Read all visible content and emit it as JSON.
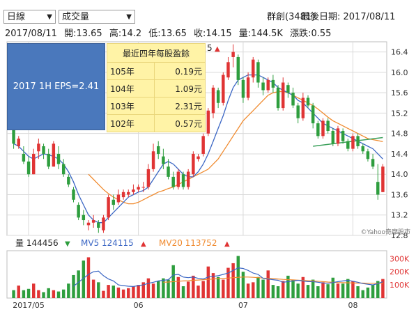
{
  "controls": {
    "period": "日線",
    "indicator": "成交量"
  },
  "header": {
    "stock_name": "群創(3481)",
    "last_date": "最後日期: 2017/08/11",
    "date": "2017/08/11",
    "open": "開:13.65",
    "high": "高:14.2",
    "low": "低:13.65",
    "close": "收:14.15",
    "volume": "量:144.5K",
    "change": "漲跌:0.55",
    "ma_hint": "5",
    "ma_arrow": "▲"
  },
  "overlay": {
    "eps_box": "2017 1H EPS=2.41",
    "eps_title": "最近四年每股盈餘",
    "eps_rows": [
      {
        "year": "105年",
        "value": "0.19元"
      },
      {
        "year": "104年",
        "value": "1.09元"
      },
      {
        "year": "103年",
        "value": "2.31元"
      },
      {
        "year": "102年",
        "value": "0.57元"
      }
    ]
  },
  "volume_legend": {
    "vol_label": "量 144456",
    "vol_arrow": "▼",
    "ma5_label": "MV5 124115",
    "ma5_arrow": "▲",
    "ma20_label": "MV20 113752",
    "ma20_arrow": "▲"
  },
  "watermark": "©Yahoo奇摩股市",
  "colors": {
    "up": "#e03434",
    "down": "#2e9e3e",
    "ma5": "#3b66c4",
    "ma20": "#f08a2e",
    "trendline": "#3aa05a",
    "grid": "#d9d9d9"
  },
  "chart_data": {
    "type": "candlestick",
    "price_axis": {
      "ticks": [
        12.8,
        13.2,
        13.6,
        14.0,
        14.4,
        14.8,
        15.2,
        15.6,
        16.0,
        16.4
      ],
      "range": [
        12.8,
        16.6
      ]
    },
    "volume_axis": {
      "ticks": [
        "100K",
        "200K",
        "300K"
      ],
      "range": [
        0,
        360
      ]
    },
    "x_ticks": [
      "2017/05",
      "06",
      "07",
      "08"
    ],
    "x_tick_index": [
      3,
      25,
      46,
      68
    ],
    "candles": [
      [
        14.9,
        15.0,
        14.5,
        14.6
      ],
      [
        14.55,
        14.75,
        14.5,
        14.7
      ],
      [
        14.4,
        14.55,
        14.2,
        14.25
      ],
      [
        14.25,
        14.35,
        13.95,
        14.0
      ],
      [
        14.0,
        14.5,
        14.0,
        14.4
      ],
      [
        14.45,
        14.7,
        14.3,
        14.6
      ],
      [
        14.55,
        14.6,
        14.3,
        14.4
      ],
      [
        14.4,
        14.5,
        14.1,
        14.15
      ],
      [
        14.15,
        14.65,
        14.15,
        14.6
      ],
      [
        14.4,
        14.55,
        14.1,
        14.2
      ],
      [
        14.2,
        14.3,
        13.95,
        14.0
      ],
      [
        13.95,
        14.0,
        13.75,
        13.8
      ],
      [
        13.7,
        13.75,
        13.45,
        13.5
      ],
      [
        13.4,
        13.45,
        13.1,
        13.15
      ],
      [
        13.2,
        13.3,
        13.0,
        13.1
      ],
      [
        13.0,
        13.1,
        12.9,
        13.05
      ],
      [
        13.05,
        13.2,
        12.95,
        13.1
      ],
      [
        13.05,
        13.1,
        12.85,
        12.95
      ],
      [
        12.9,
        13.2,
        12.85,
        13.15
      ],
      [
        13.15,
        13.6,
        13.1,
        13.55
      ],
      [
        13.5,
        13.6,
        13.3,
        13.4
      ],
      [
        13.45,
        13.7,
        13.4,
        13.6
      ],
      [
        13.55,
        13.7,
        13.5,
        13.65
      ],
      [
        13.6,
        13.7,
        13.55,
        13.65
      ],
      [
        13.65,
        13.8,
        13.6,
        13.7
      ],
      [
        13.7,
        13.8,
        13.65,
        13.75
      ],
      [
        13.75,
        13.85,
        13.65,
        13.75
      ],
      [
        13.75,
        14.2,
        13.7,
        14.1
      ],
      [
        14.1,
        14.6,
        14.05,
        14.45
      ],
      [
        14.55,
        14.65,
        14.3,
        14.4
      ],
      [
        14.35,
        14.5,
        14.1,
        14.2
      ],
      [
        14.15,
        14.3,
        13.9,
        13.95
      ],
      [
        13.95,
        14.05,
        13.7,
        13.75
      ],
      [
        13.75,
        14.1,
        13.7,
        14.05
      ],
      [
        14.0,
        14.05,
        13.7,
        13.75
      ],
      [
        13.75,
        14.1,
        13.7,
        14.05
      ],
      [
        14.0,
        14.45,
        13.95,
        14.4
      ],
      [
        14.3,
        14.4,
        14.25,
        14.35
      ],
      [
        14.4,
        14.8,
        14.35,
        14.75
      ],
      [
        14.8,
        15.3,
        14.75,
        15.25
      ],
      [
        15.2,
        15.75,
        15.1,
        15.7
      ],
      [
        15.65,
        15.7,
        15.3,
        15.4
      ],
      [
        15.4,
        16.0,
        15.35,
        15.95
      ],
      [
        15.9,
        16.3,
        15.85,
        16.2
      ],
      [
        16.3,
        16.55,
        16.1,
        16.4
      ],
      [
        16.3,
        16.35,
        15.75,
        15.85
      ],
      [
        15.85,
        15.9,
        15.4,
        15.5
      ],
      [
        15.5,
        16.0,
        15.45,
        15.9
      ],
      [
        15.9,
        16.3,
        15.8,
        16.25
      ],
      [
        16.2,
        16.25,
        15.7,
        15.8
      ],
      [
        15.8,
        15.9,
        15.55,
        15.65
      ],
      [
        15.65,
        15.9,
        15.6,
        15.85
      ],
      [
        15.85,
        15.95,
        15.6,
        15.7
      ],
      [
        15.7,
        15.75,
        15.25,
        15.3
      ],
      [
        15.3,
        15.9,
        15.25,
        15.8
      ],
      [
        15.75,
        15.8,
        15.5,
        15.6
      ],
      [
        15.6,
        15.7,
        15.3,
        15.35
      ],
      [
        15.35,
        15.4,
        15.0,
        15.1
      ],
      [
        15.1,
        15.6,
        15.05,
        15.5
      ],
      [
        15.5,
        15.55,
        15.3,
        15.35
      ],
      [
        15.35,
        15.4,
        14.9,
        15.0
      ],
      [
        15.0,
        15.05,
        14.7,
        14.75
      ],
      [
        14.75,
        15.1,
        14.7,
        15.05
      ],
      [
        15.05,
        15.1,
        14.8,
        14.85
      ],
      [
        14.85,
        14.9,
        14.55,
        14.6
      ],
      [
        14.6,
        14.95,
        14.55,
        14.9
      ],
      [
        14.85,
        14.9,
        14.6,
        14.65
      ],
      [
        14.65,
        14.7,
        14.45,
        14.5
      ],
      [
        14.5,
        14.8,
        14.45,
        14.75
      ],
      [
        14.75,
        14.8,
        14.5,
        14.55
      ],
      [
        14.55,
        14.6,
        14.4,
        14.45
      ],
      [
        14.45,
        14.5,
        14.25,
        14.3
      ],
      [
        14.3,
        14.4,
        14.1,
        14.15
      ],
      [
        13.85,
        14.2,
        13.5,
        13.6
      ],
      [
        13.65,
        14.2,
        13.65,
        14.15
      ]
    ],
    "ma5": [
      14.6,
      14.55,
      14.45,
      14.35,
      14.3,
      14.35,
      14.4,
      14.38,
      14.35,
      14.3,
      14.2,
      14.05,
      13.85,
      13.6,
      13.4,
      13.2,
      13.1,
      13.05,
      13.05,
      13.15,
      13.25,
      13.35,
      13.45,
      13.55,
      13.6,
      13.65,
      13.68,
      13.75,
      13.9,
      14.05,
      14.2,
      14.25,
      14.2,
      14.1,
      14.0,
      13.95,
      13.95,
      14.05,
      14.2,
      14.4,
      14.65,
      14.9,
      15.15,
      15.45,
      15.7,
      15.85,
      15.9,
      15.95,
      15.95,
      15.95,
      15.9,
      15.85,
      15.8,
      15.7,
      15.65,
      15.6,
      15.55,
      15.45,
      15.4,
      15.3,
      15.2,
      15.1,
      15.0,
      14.95,
      14.9,
      14.85,
      14.8,
      14.75,
      14.7,
      14.65,
      14.6,
      14.55,
      14.5,
      14.4,
      14.3
    ],
    "ma20": [
      null,
      null,
      null,
      null,
      null,
      null,
      null,
      null,
      null,
      null,
      null,
      null,
      null,
      null,
      null,
      14.0,
      13.9,
      13.8,
      13.7,
      13.62,
      13.55,
      13.5,
      13.45,
      13.42,
      13.42,
      13.45,
      13.5,
      13.55,
      13.6,
      13.65,
      13.68,
      13.72,
      13.75,
      13.8,
      13.85,
      13.9,
      13.95,
      14.0,
      14.05,
      14.1,
      14.2,
      14.3,
      14.45,
      14.6,
      14.75,
      14.9,
      15.05,
      15.15,
      15.25,
      15.35,
      15.45,
      15.55,
      15.6,
      15.62,
      15.63,
      15.6,
      15.55,
      15.5,
      15.45,
      15.4,
      15.35,
      15.28,
      15.2,
      15.12,
      15.05,
      15.0,
      14.95,
      14.9,
      14.85,
      14.8,
      14.75,
      14.7,
      14.68,
      14.66,
      14.64
    ],
    "trendline": [
      [
        60,
        14.55
      ],
      [
        74,
        14.72
      ]
    ],
    "volume": [
      60,
      95,
      60,
      70,
      110,
      60,
      45,
      75,
      60,
      50,
      65,
      110,
      175,
      210,
      285,
      310,
      140,
      120,
      55,
      100,
      95,
      80,
      65,
      75,
      90,
      100,
      120,
      150,
      110,
      130,
      150,
      140,
      250,
      160,
      90,
      125,
      170,
      95,
      130,
      240,
      190,
      160,
      140,
      230,
      265,
      320,
      200,
      110,
      120,
      160,
      140,
      210,
      100,
      90,
      130,
      170,
      140,
      110,
      160,
      100,
      140,
      90,
      120,
      105,
      155,
      110,
      110,
      145,
      130,
      90,
      60,
      80,
      100,
      130,
      145
    ],
    "vol_ma5": [
      null,
      null,
      null,
      null,
      null,
      null,
      null,
      null,
      null,
      null,
      null,
      null,
      90,
      120,
      150,
      180,
      200,
      205,
      170,
      145,
      130,
      100,
      95,
      90,
      88,
      95,
      100,
      112,
      120,
      130,
      135,
      140,
      175,
      180,
      160,
      155,
      160,
      150,
      145,
      160,
      165,
      170,
      180,
      190,
      210,
      230,
      225,
      210,
      190,
      180,
      150,
      145,
      140,
      135,
      120,
      125,
      130,
      135,
      130,
      125,
      125,
      120,
      115,
      112,
      118,
      125,
      130,
      135,
      128,
      120,
      110,
      105,
      100,
      110,
      124
    ],
    "vol_ma20": [
      null,
      null,
      null,
      null,
      null,
      null,
      null,
      null,
      null,
      null,
      null,
      null,
      null,
      null,
      null,
      null,
      null,
      null,
      null,
      null,
      null,
      null,
      null,
      null,
      null,
      null,
      null,
      null,
      null,
      null,
      120,
      122,
      125,
      128,
      130,
      132,
      135,
      137,
      140,
      142,
      145,
      148,
      150,
      152,
      155,
      158,
      160,
      160,
      158,
      155,
      152,
      150,
      148,
      145,
      142,
      140,
      138,
      136,
      134,
      132,
      130,
      128,
      125,
      122,
      120,
      118,
      117,
      116,
      115,
      114,
      114,
      113,
      113,
      113,
      114
    ]
  }
}
